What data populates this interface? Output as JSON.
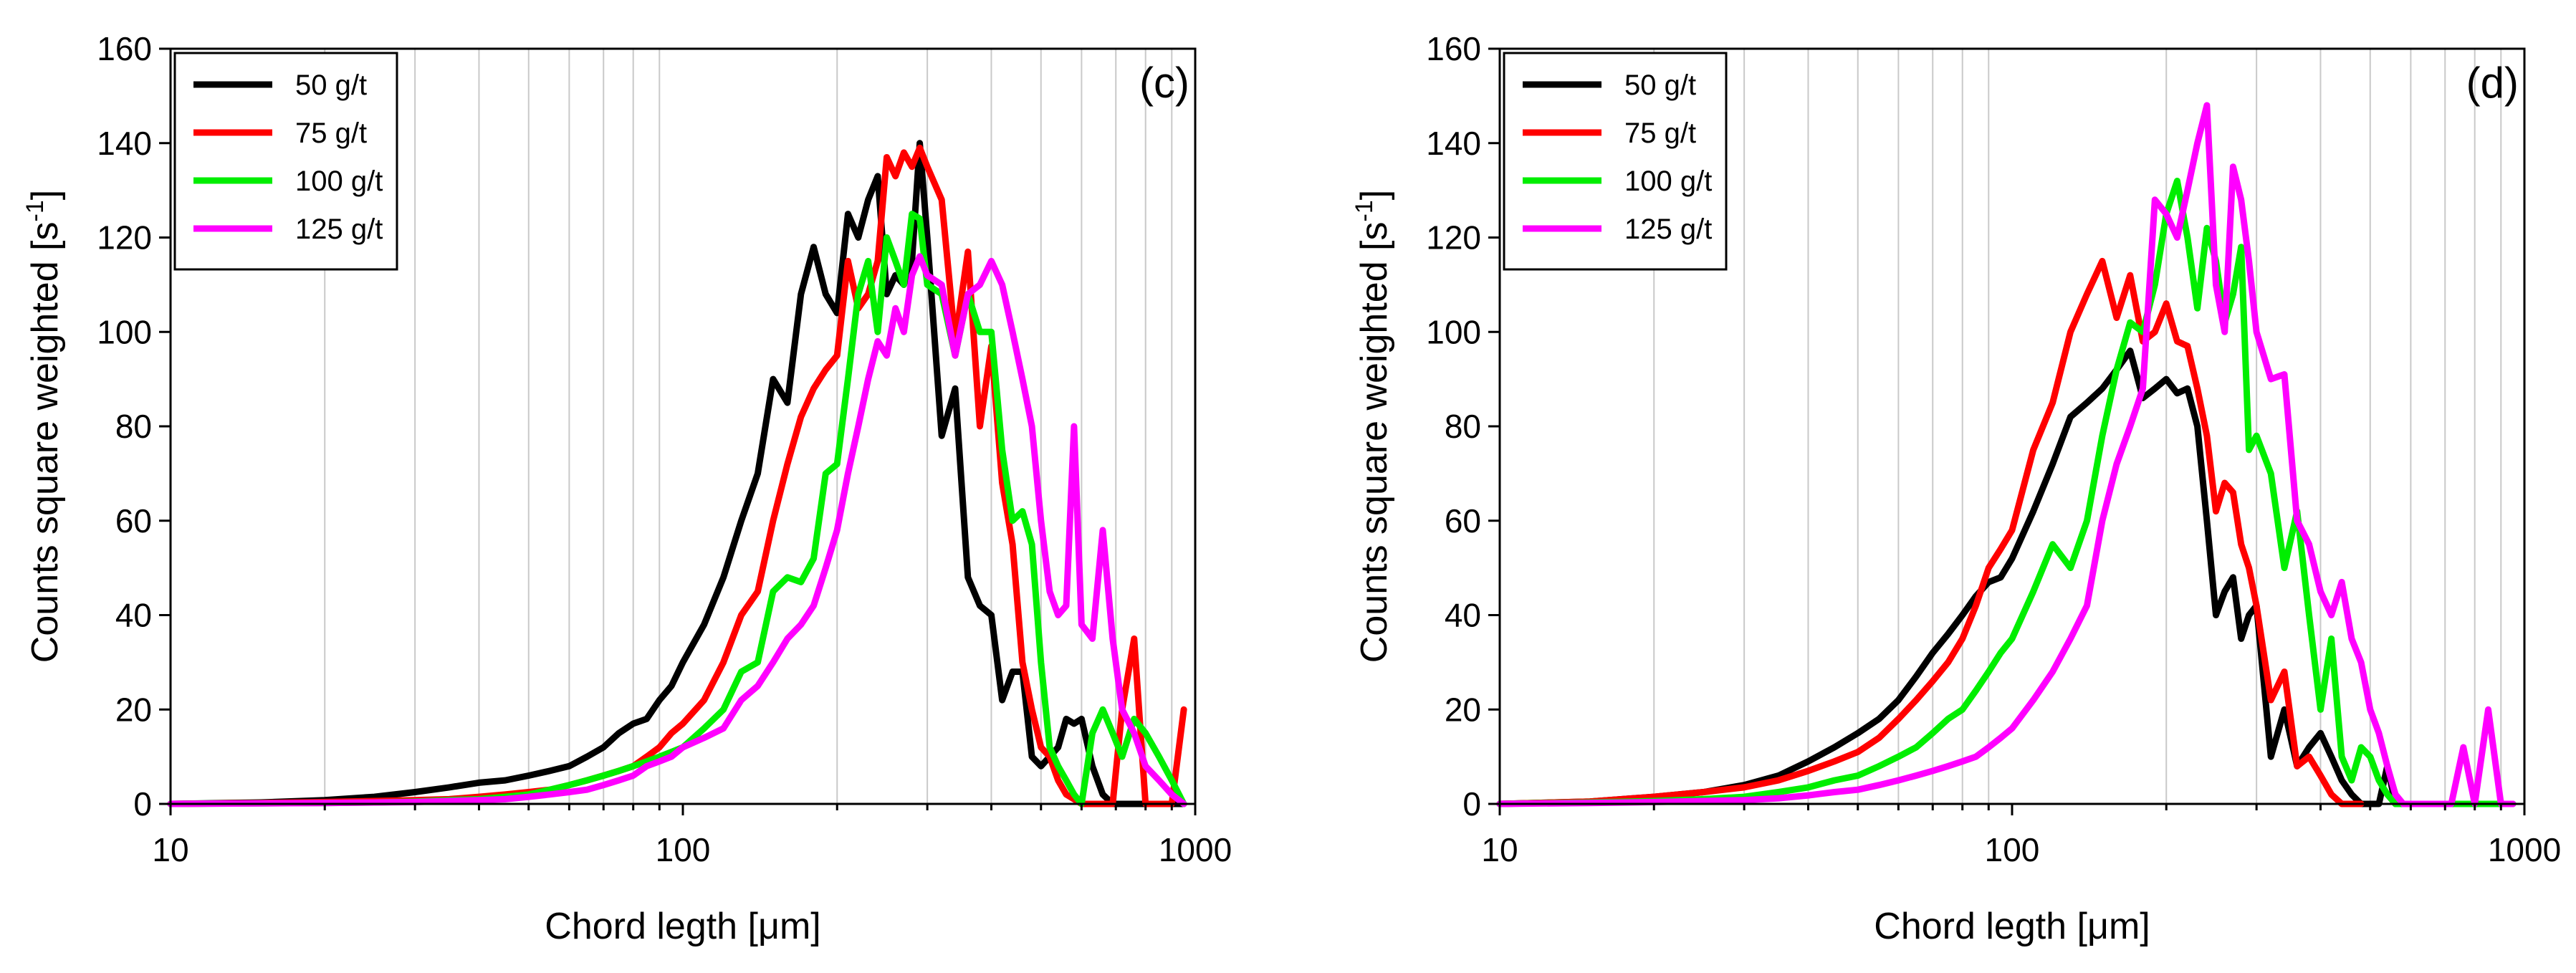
{
  "chart_data": [
    {
      "type": "line",
      "panel_label": "(c)",
      "xlabel": "Chord legth [μm]",
      "ylabel": "Counts square weighted [s",
      "ylabel_sup": "-1",
      "ylabel_end": "]",
      "xscale": "log",
      "xlim": [
        10,
        1000
      ],
      "ylim": [
        0,
        160
      ],
      "x_ticks": [
        10,
        100,
        1000
      ],
      "x_tick_labels": [
        "10",
        "100",
        "1000"
      ],
      "y_ticks": [
        0,
        20,
        40,
        60,
        80,
        100,
        120,
        140,
        160
      ],
      "y_tick_labels": [
        "0",
        "20",
        "40",
        "60",
        "80",
        "100",
        "120",
        "140",
        "160"
      ],
      "legend_position": "top-left",
      "series": [
        {
          "name": "50 g/t",
          "color": "#000000",
          "x": [
            10,
            15,
            20,
            25,
            30,
            35,
            40,
            45,
            50,
            55,
            60,
            65,
            70,
            75,
            80,
            85,
            90,
            95,
            100,
            110,
            120,
            130,
            140,
            150,
            160,
            170,
            180,
            190,
            200,
            210,
            220,
            230,
            240,
            250,
            260,
            270,
            280,
            290,
            300,
            320,
            340,
            360,
            380,
            400,
            420,
            440,
            460,
            480,
            500,
            520,
            540,
            560,
            580,
            600,
            630,
            660,
            690,
            720,
            760,
            800,
            850,
            900,
            950
          ],
          "y": [
            0,
            0.3,
            0.8,
            1.5,
            2.5,
            3.5,
            4.5,
            5,
            6,
            7,
            8,
            10,
            12,
            15,
            17,
            18,
            22,
            25,
            30,
            38,
            48,
            60,
            70,
            90,
            85,
            108,
            118,
            108,
            104,
            125,
            120,
            128,
            133,
            108,
            112,
            110,
            115,
            140,
            120,
            78,
            88,
            48,
            42,
            40,
            22,
            28,
            28,
            10,
            8,
            10,
            12,
            18,
            17,
            18,
            8,
            2,
            0,
            0,
            0,
            0,
            0,
            0,
            0
          ]
        },
        {
          "name": "75 g/t",
          "color": "#ff0000",
          "x": [
            10,
            15,
            20,
            25,
            30,
            35,
            40,
            45,
            50,
            55,
            60,
            65,
            70,
            75,
            80,
            85,
            90,
            95,
            100,
            110,
            120,
            130,
            140,
            150,
            160,
            170,
            180,
            190,
            200,
            210,
            220,
            230,
            240,
            250,
            260,
            270,
            280,
            290,
            300,
            320,
            340,
            360,
            380,
            400,
            420,
            440,
            460,
            480,
            500,
            520,
            540,
            560,
            580,
            600,
            630,
            660,
            690,
            720,
            760,
            800,
            850,
            900,
            950
          ],
          "y": [
            0,
            0.2,
            0.4,
            0.6,
            0.8,
            1,
            1.5,
            2,
            2.5,
            3,
            4,
            5,
            6,
            7,
            8,
            10,
            12,
            15,
            17,
            22,
            30,
            40,
            45,
            60,
            72,
            82,
            88,
            92,
            95,
            115,
            105,
            108,
            115,
            137,
            133,
            138,
            135,
            139,
            135,
            128,
            98,
            117,
            80,
            97,
            68,
            55,
            30,
            20,
            12,
            10,
            5,
            2,
            1,
            0,
            0,
            0,
            0,
            20,
            35,
            0,
            0,
            0,
            20
          ]
        },
        {
          "name": "100 g/t",
          "color": "#00ee00",
          "x": [
            10,
            15,
            20,
            25,
            30,
            35,
            40,
            45,
            50,
            55,
            60,
            65,
            70,
            75,
            80,
            85,
            90,
            95,
            100,
            110,
            120,
            130,
            140,
            150,
            160,
            170,
            180,
            190,
            200,
            210,
            220,
            230,
            240,
            250,
            260,
            270,
            280,
            290,
            300,
            320,
            340,
            360,
            380,
            400,
            420,
            440,
            460,
            480,
            500,
            520,
            540,
            560,
            580,
            600,
            630,
            660,
            690,
            720,
            760,
            800,
            850,
            900,
            950
          ],
          "y": [
            0,
            0.1,
            0.2,
            0.3,
            0.5,
            0.8,
            1,
            1.5,
            2,
            3,
            4,
            5,
            6,
            7,
            8,
            9,
            10,
            11,
            12,
            16,
            20,
            28,
            30,
            45,
            48,
            47,
            52,
            70,
            72,
            90,
            108,
            115,
            100,
            120,
            115,
            110,
            125,
            124,
            110,
            108,
            95,
            108,
            100,
            100,
            75,
            60,
            62,
            55,
            30,
            12,
            8,
            5,
            2,
            0,
            15,
            20,
            15,
            10,
            18,
            15,
            10,
            5,
            0
          ]
        },
        {
          "name": "125 g/t",
          "color": "#ff00ff",
          "x": [
            10,
            15,
            20,
            25,
            30,
            35,
            40,
            45,
            50,
            55,
            60,
            65,
            70,
            75,
            80,
            85,
            90,
            95,
            100,
            110,
            120,
            130,
            140,
            150,
            160,
            170,
            180,
            190,
            200,
            210,
            220,
            230,
            240,
            250,
            260,
            270,
            280,
            290,
            300,
            320,
            340,
            360,
            380,
            400,
            420,
            440,
            460,
            480,
            500,
            520,
            540,
            560,
            580,
            600,
            630,
            660,
            690,
            720,
            760,
            800,
            850,
            900,
            950
          ],
          "y": [
            0,
            0.1,
            0.2,
            0.3,
            0.4,
            0.6,
            0.8,
            1,
            1.5,
            2,
            2.5,
            3,
            4,
            5,
            6,
            8,
            9,
            10,
            12,
            14,
            16,
            22,
            25,
            30,
            35,
            38,
            42,
            50,
            58,
            70,
            80,
            90,
            98,
            95,
            105,
            100,
            112,
            116,
            112,
            110,
            95,
            108,
            110,
            115,
            110,
            100,
            90,
            80,
            60,
            45,
            40,
            42,
            80,
            38,
            35,
            58,
            35,
            20,
            15,
            8,
            5,
            2,
            0
          ]
        }
      ]
    },
    {
      "type": "line",
      "panel_label": "(d)",
      "xlabel": "Chord legth [μm]",
      "ylabel": "Counts square weighted [s",
      "ylabel_sup": "-1",
      "ylabel_end": "]",
      "xscale": "log",
      "xlim": [
        10,
        1000
      ],
      "ylim": [
        0,
        160
      ],
      "x_ticks": [
        10,
        100,
        1000
      ],
      "x_tick_labels": [
        "10",
        "100",
        "1000"
      ],
      "y_ticks": [
        0,
        20,
        40,
        60,
        80,
        100,
        120,
        140,
        160
      ],
      "y_tick_labels": [
        "0",
        "20",
        "40",
        "60",
        "80",
        "100",
        "120",
        "140",
        "160"
      ],
      "legend_position": "top-left",
      "series": [
        {
          "name": "50 g/t",
          "color": "#000000",
          "x": [
            10,
            15,
            20,
            25,
            30,
            35,
            40,
            45,
            50,
            55,
            60,
            65,
            70,
            75,
            80,
            85,
            90,
            95,
            100,
            110,
            120,
            130,
            140,
            150,
            160,
            170,
            180,
            190,
            200,
            210,
            220,
            230,
            240,
            250,
            260,
            270,
            280,
            290,
            300,
            320,
            340,
            360,
            380,
            400,
            420,
            440,
            460,
            480,
            500,
            520,
            540,
            560,
            580
          ],
          "y": [
            0,
            0.5,
            1.5,
            2.5,
            4,
            6,
            9,
            12,
            15,
            18,
            22,
            27,
            32,
            36,
            40,
            44,
            47,
            48,
            52,
            62,
            72,
            82,
            85,
            88,
            92,
            96,
            86,
            88,
            90,
            87,
            88,
            80,
            60,
            40,
            45,
            48,
            35,
            40,
            42,
            10,
            20,
            8,
            12,
            15,
            10,
            5,
            2,
            0,
            0,
            0,
            8,
            0,
            0
          ]
        },
        {
          "name": "75 g/t",
          "color": "#ff0000",
          "x": [
            10,
            15,
            20,
            25,
            30,
            35,
            40,
            45,
            50,
            55,
            60,
            65,
            70,
            75,
            80,
            85,
            90,
            95,
            100,
            110,
            120,
            130,
            140,
            150,
            160,
            170,
            180,
            190,
            200,
            210,
            220,
            230,
            240,
            250,
            260,
            270,
            280,
            290,
            300,
            320,
            340,
            360,
            380,
            400,
            420,
            440,
            460,
            480
          ],
          "y": [
            0,
            0.5,
            1.5,
            2.5,
            3.5,
            5,
            7,
            9,
            11,
            14,
            18,
            22,
            26,
            30,
            35,
            42,
            50,
            54,
            58,
            75,
            85,
            100,
            108,
            115,
            103,
            112,
            98,
            100,
            106,
            98,
            97,
            88,
            78,
            62,
            68,
            66,
            55,
            50,
            42,
            22,
            28,
            8,
            10,
            6,
            2,
            0,
            0,
            0
          ]
        },
        {
          "name": "100 g/t",
          "color": "#00ee00",
          "x": [
            10,
            15,
            20,
            25,
            30,
            35,
            40,
            45,
            50,
            55,
            60,
            65,
            70,
            75,
            80,
            85,
            90,
            95,
            100,
            110,
            120,
            130,
            140,
            150,
            160,
            170,
            180,
            190,
            200,
            210,
            220,
            230,
            240,
            250,
            260,
            270,
            280,
            290,
            300,
            320,
            340,
            360,
            380,
            400,
            420,
            440,
            460,
            480,
            500,
            520,
            540,
            560,
            580,
            600,
            630,
            660,
            690,
            720,
            760,
            800,
            850,
            900,
            950
          ],
          "y": [
            0,
            0.3,
            0.6,
            1,
            1.5,
            2.5,
            3.5,
            5,
            6,
            8,
            10,
            12,
            15,
            18,
            20,
            24,
            28,
            32,
            35,
            45,
            55,
            50,
            60,
            78,
            92,
            102,
            100,
            110,
            125,
            132,
            120,
            105,
            122,
            115,
            102,
            108,
            118,
            75,
            78,
            70,
            50,
            62,
            40,
            20,
            35,
            10,
            5,
            12,
            10,
            5,
            2,
            0,
            0,
            0,
            0,
            0,
            0,
            0,
            0,
            0,
            0,
            0,
            0
          ]
        },
        {
          "name": "125 g/t",
          "color": "#ff00ff",
          "x": [
            10,
            15,
            20,
            25,
            30,
            35,
            40,
            45,
            50,
            55,
            60,
            65,
            70,
            75,
            80,
            85,
            90,
            95,
            100,
            110,
            120,
            130,
            140,
            150,
            160,
            170,
            180,
            190,
            200,
            210,
            220,
            230,
            240,
            250,
            260,
            270,
            280,
            290,
            300,
            320,
            340,
            360,
            380,
            400,
            420,
            440,
            460,
            480,
            500,
            520,
            540,
            560,
            580,
            600,
            630,
            660,
            690,
            720,
            760,
            800,
            850,
            900,
            950
          ],
          "y": [
            0,
            0.2,
            0.4,
            0.6,
            0.8,
            1.2,
            1.8,
            2.5,
            3,
            4,
            5,
            6,
            7,
            8,
            9,
            10,
            12,
            14,
            16,
            22,
            28,
            35,
            42,
            60,
            72,
            80,
            88,
            128,
            125,
            120,
            130,
            140,
            148,
            110,
            100,
            135,
            128,
            115,
            100,
            90,
            91,
            60,
            55,
            45,
            40,
            47,
            35,
            30,
            20,
            15,
            8,
            2,
            0,
            0,
            0,
            0,
            0,
            0,
            12,
            0,
            20,
            0,
            0
          ]
        }
      ]
    }
  ]
}
